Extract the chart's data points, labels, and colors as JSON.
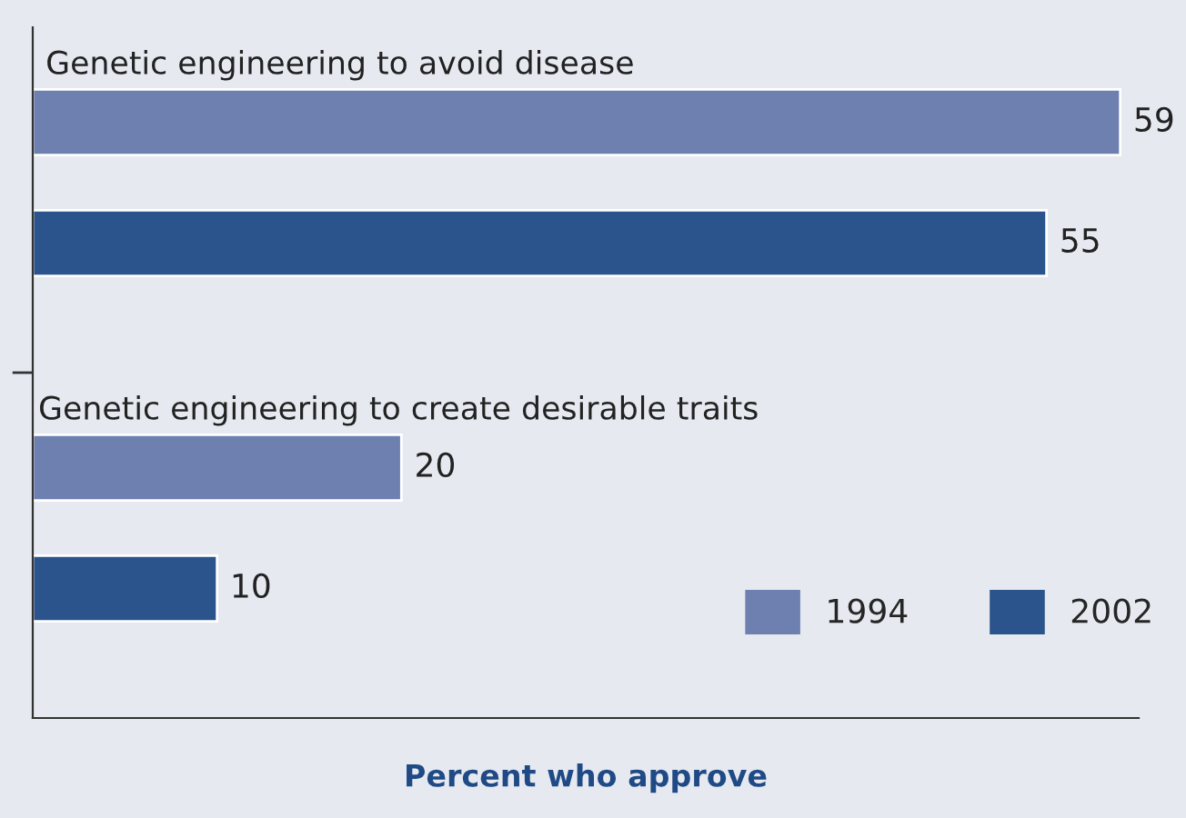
{
  "chart_data": {
    "type": "bar",
    "orientation": "horizontal",
    "xlabel": "Percent who approve",
    "categories": [
      "Genetic engineering to avoid disease",
      "Genetic engineering to create desirable traits"
    ],
    "series": [
      {
        "name": "1994",
        "color": "#6d80b0",
        "values": [
          59,
          20
        ]
      },
      {
        "name": "2002",
        "color": "#2b548c",
        "values": [
          55,
          10
        ]
      }
    ],
    "data_labels": true,
    "legend": "bottom right",
    "grid": false
  }
}
